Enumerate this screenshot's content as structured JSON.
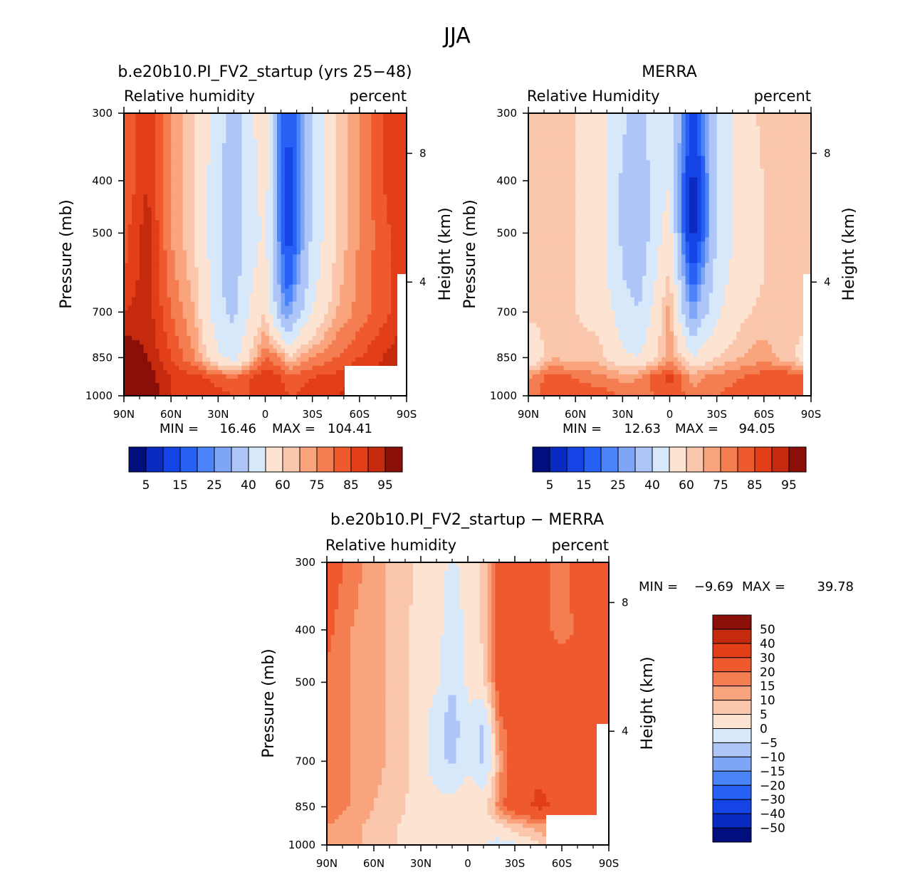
{
  "figure": {
    "main_title": "JJA",
    "colors": {
      "fill_seq": [
        "#000e7e",
        "#0a2bc2",
        "#1544e6",
        "#2760f5",
        "#4b83f8",
        "#7fa6f6",
        "#adc6f7",
        "#d8e8fb",
        "#fde3d2",
        "#fbc7ac",
        "#f9a47d",
        "#f47e52",
        "#ee5a2e",
        "#e23e17",
        "#c52a0e",
        "#8a0f08"
      ],
      "fill_div": [
        "#000e7e",
        "#0a2bc2",
        "#1544e6",
        "#2760f5",
        "#4b83f8",
        "#7fa6f6",
        "#adc6f7",
        "#d8e8fb",
        "#fde3d2",
        "#fbc7ac",
        "#f9a47d",
        "#f47e52",
        "#ee5a2e",
        "#e23e17",
        "#c52a0e",
        "#8a0f08"
      ]
    }
  },
  "chart_data": [
    {
      "id": "model",
      "type": "heatmap",
      "title": "b.e20b10.PI_FV2_startup (yrs 25−48)",
      "left_label": "Relative humidity",
      "right_label": "percent",
      "ylabel": "Pressure (mb)",
      "ylabel_right": "Height (km)",
      "x": [
        "90N",
        "60N",
        "30N",
        "0",
        "30S",
        "60S",
        "90S"
      ],
      "y": [
        "300",
        "400",
        "500",
        "700",
        "850",
        "1000"
      ],
      "y_right": [
        "8",
        "4"
      ],
      "xlim": [
        -90,
        90
      ],
      "ylim": [
        1000,
        300
      ],
      "min_label": "MIN =",
      "min_value": "16.46",
      "max_label": "MAX =",
      "max_value": "104.41",
      "colorbar_labels": [
        "5",
        "15",
        "25",
        "40",
        "60",
        "75",
        "85",
        "95"
      ],
      "field": {
        "lat": [
          -90,
          -75,
          -60,
          -45,
          -30,
          -20,
          -10,
          0,
          10,
          15,
          20,
          30,
          45,
          60,
          75,
          90
        ],
        "lev": [
          300,
          400,
          500,
          600,
          700,
          850,
          925,
          1000
        ],
        "values": [
          [
            75,
            85,
            70,
            60,
            45,
            35,
            45,
            60,
            20,
            15,
            20,
            40,
            60,
            70,
            80,
            85
          ],
          [
            75,
            85,
            70,
            60,
            42,
            32,
            45,
            55,
            18,
            12,
            18,
            40,
            60,
            70,
            80,
            85
          ],
          [
            78,
            88,
            70,
            60,
            42,
            32,
            45,
            52,
            20,
            12,
            20,
            42,
            60,
            70,
            78,
            85
          ],
          [
            80,
            88,
            72,
            62,
            42,
            35,
            48,
            55,
            25,
            15,
            25,
            45,
            62,
            72,
            78,
            85
          ],
          [
            85,
            88,
            75,
            65,
            42,
            38,
            50,
            60,
            30,
            25,
            35,
            50,
            65,
            72,
            78,
            85
          ],
          [
            95,
            90,
            80,
            70,
            52,
            45,
            60,
            75,
            70,
            60,
            65,
            70,
            75,
            80,
            85,
            90
          ],
          [
            95,
            93,
            85,
            82,
            78,
            75,
            80,
            85,
            80,
            78,
            78,
            80,
            82,
            85,
            88,
            95
          ],
          [
            95,
            95,
            85,
            85,
            82,
            80,
            80,
            85,
            82,
            80,
            80,
            82,
            85,
            88,
            92,
            98
          ]
        ]
      }
    },
    {
      "id": "merra",
      "type": "heatmap",
      "title": "MERRA",
      "left_label": "Relative Humidity",
      "right_label": "percent",
      "ylabel": "Pressure (mb)",
      "ylabel_right": "Height (km)",
      "x": [
        "90N",
        "60N",
        "30N",
        "0",
        "30S",
        "60S",
        "90S"
      ],
      "y": [
        "300",
        "400",
        "500",
        "700",
        "850",
        "1000"
      ],
      "y_right": [
        "8",
        "4"
      ],
      "xlim": [
        -90,
        90
      ],
      "ylim": [
        1000,
        300
      ],
      "min_label": "MIN =",
      "min_value": "12.63",
      "max_label": "MAX =",
      "max_value": "94.05",
      "colorbar_labels": [
        "5",
        "15",
        "25",
        "40",
        "60",
        "75",
        "85",
        "95"
      ],
      "field": {
        "lat": [
          -90,
          -75,
          -60,
          -45,
          -30,
          -20,
          -10,
          0,
          10,
          15,
          20,
          30,
          45,
          60,
          75,
          90
        ],
        "lev": [
          300,
          400,
          500,
          600,
          700,
          850,
          925,
          1000
        ],
        "values": [
          [
            62,
            62,
            60,
            55,
            42,
            35,
            45,
            50,
            20,
            10,
            20,
            42,
            55,
            62,
            65,
            62
          ],
          [
            62,
            62,
            60,
            55,
            38,
            30,
            45,
            50,
            15,
            8,
            15,
            40,
            55,
            60,
            62,
            62
          ],
          [
            62,
            62,
            60,
            55,
            38,
            30,
            45,
            55,
            15,
            8,
            15,
            40,
            55,
            60,
            62,
            62
          ],
          [
            62,
            62,
            60,
            55,
            40,
            35,
            48,
            62,
            25,
            15,
            25,
            45,
            55,
            60,
            62,
            62
          ],
          [
            62,
            62,
            60,
            58,
            45,
            40,
            52,
            68,
            35,
            25,
            35,
            48,
            58,
            62,
            62,
            62
          ],
          [
            50,
            65,
            62,
            62,
            52,
            50,
            58,
            68,
            58,
            50,
            55,
            60,
            65,
            68,
            62,
            55
          ],
          [
            70,
            78,
            75,
            72,
            68,
            70,
            78,
            82,
            72,
            68,
            70,
            72,
            75,
            78,
            80,
            75
          ],
          [
            70,
            80,
            78,
            78,
            75,
            72,
            75,
            78,
            75,
            72,
            72,
            75,
            78,
            80,
            80,
            75
          ]
        ]
      }
    },
    {
      "id": "diff",
      "type": "heatmap",
      "title": "b.e20b10.PI_FV2_startup − MERRA",
      "left_label": "Relative humidity",
      "right_label": "percent",
      "ylabel": "Pressure (mb)",
      "ylabel_right": "Height (km)",
      "x": [
        "90N",
        "60N",
        "30N",
        "0",
        "30S",
        "60S",
        "90S"
      ],
      "y": [
        "300",
        "400",
        "500",
        "700",
        "850",
        "1000"
      ],
      "y_right": [
        "8",
        "4"
      ],
      "xlim": [
        -90,
        90
      ],
      "ylim": [
        1000,
        300
      ],
      "min_label": "MIN =",
      "min_value": "−9.69",
      "max_label": "MAX =",
      "max_value": "39.78",
      "colorbar_labels": [
        "50",
        "40",
        "30",
        "20",
        "15",
        "10",
        "5",
        "0",
        "−5",
        "−10",
        "−15",
        "−20",
        "−30",
        "−40",
        "−50"
      ],
      "field": {
        "lat": [
          -90,
          -75,
          -60,
          -45,
          -30,
          -20,
          -10,
          0,
          10,
          15,
          20,
          30,
          45,
          60,
          75,
          90
        ],
        "lev": [
          300,
          400,
          500,
          600,
          700,
          850,
          925,
          1000
        ],
        "values": [
          [
            25,
            18,
            12,
            8,
            4,
            2,
            -1,
            2,
            6,
            12,
            25,
            25,
            22,
            18,
            25,
            25
          ],
          [
            22,
            15,
            12,
            8,
            2,
            2,
            -3,
            1,
            6,
            12,
            25,
            25,
            22,
            18,
            22,
            22
          ],
          [
            18,
            15,
            12,
            8,
            2,
            1,
            -5,
            1,
            4,
            12,
            25,
            27,
            28,
            25,
            22,
            22
          ],
          [
            18,
            15,
            12,
            8,
            2,
            -3,
            -8,
            -1,
            -6,
            2,
            18,
            25,
            28,
            25,
            22,
            22
          ],
          [
            18,
            15,
            12,
            8,
            2,
            -3,
            -6,
            -1,
            -6,
            -1,
            12,
            25,
            28,
            25,
            22,
            22
          ],
          [
            18,
            15,
            10,
            6,
            3,
            2,
            2,
            4,
            4,
            8,
            18,
            25,
            32,
            28,
            22,
            22
          ],
          [
            15,
            12,
            8,
            5,
            4,
            2,
            1,
            3,
            1,
            2,
            3,
            8,
            12,
            18,
            18,
            15
          ],
          [
            15,
            12,
            8,
            5,
            3,
            2,
            2,
            2,
            1,
            -1,
            -2,
            -1,
            4,
            10,
            10,
            10
          ]
        ]
      }
    }
  ]
}
